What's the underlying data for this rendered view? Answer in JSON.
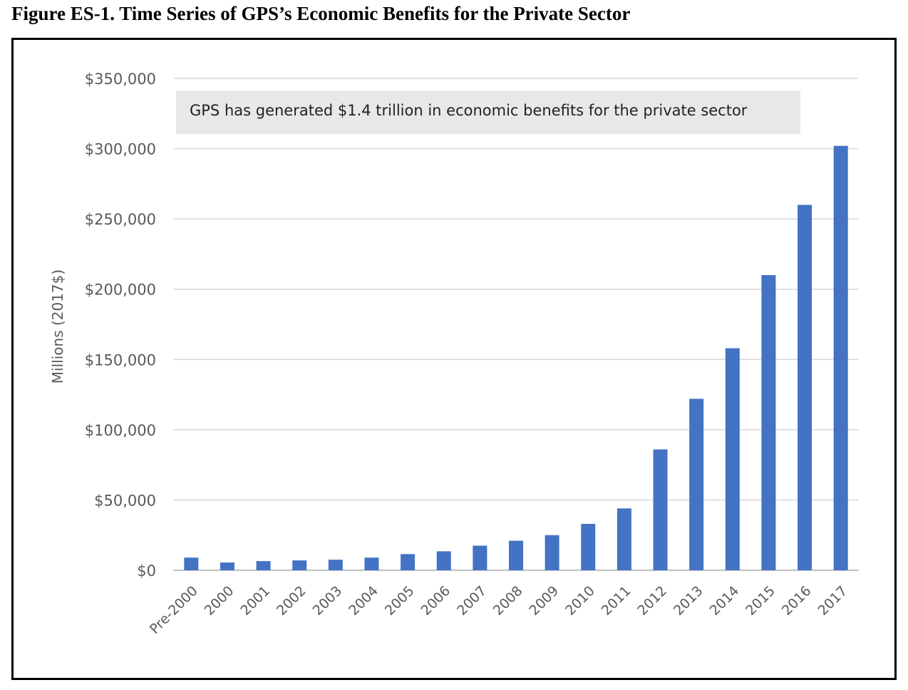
{
  "figure_title": "Figure ES-1. Time Series of GPS’s Economic Benefits for the Private Sector",
  "chart_data": {
    "type": "bar",
    "title": "",
    "xlabel": "",
    "ylabel": "Millions (2017$)",
    "ylim": [
      0,
      350000
    ],
    "yticks": [
      0,
      50000,
      100000,
      150000,
      200000,
      250000,
      300000,
      350000
    ],
    "ytick_labels": [
      "$0",
      "$50,000",
      "$100,000",
      "$150,000",
      "$200,000",
      "$250,000",
      "$300,000",
      "$350,000"
    ],
    "grid": true,
    "bar_color": "#4472C4",
    "categories": [
      "Pre-2000",
      "2000",
      "2001",
      "2002",
      "2003",
      "2004",
      "2005",
      "2006",
      "2007",
      "2008",
      "2009",
      "2010",
      "2011",
      "2012",
      "2013",
      "2014",
      "2015",
      "2016",
      "2017"
    ],
    "values": [
      9000,
      5500,
      6500,
      7000,
      7500,
      9000,
      11500,
      13500,
      17500,
      21000,
      25000,
      33000,
      44000,
      86000,
      122000,
      158000,
      210000,
      260000,
      302000
    ],
    "annotation": "GPS has generated $1.4 trillion in economic benefits for the private sector"
  }
}
